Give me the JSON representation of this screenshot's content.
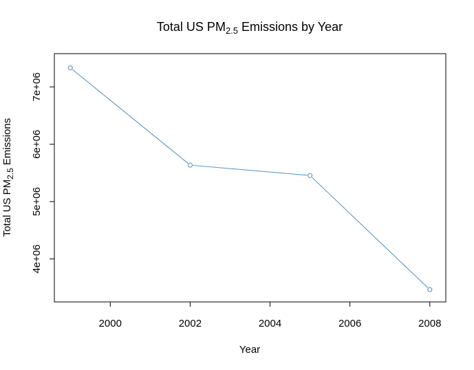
{
  "chart_data": {
    "type": "line",
    "title": {
      "prefix": "Total US  PM",
      "sub": "2.5",
      "suffix": " Emissions by Year"
    },
    "xlabel": "Year",
    "ylabel": {
      "prefix": "Total US PM",
      "sub": "2.5",
      "suffix": " Emissions"
    },
    "xlim": [
      1998.6,
      2008.4
    ],
    "ylim": [
      3250000,
      7580000
    ],
    "x_ticks": [
      2000,
      2002,
      2004,
      2006,
      2008
    ],
    "x_tick_labels": [
      "2000",
      "2002",
      "2004",
      "2006",
      "2008"
    ],
    "y_ticks": [
      4000000,
      5000000,
      6000000,
      7000000
    ],
    "y_tick_labels": [
      "4e+06",
      "5e+06",
      "6e+06",
      "7e+06"
    ],
    "grid": false,
    "legend": "none",
    "series": [
      {
        "color": "#4a8ec4",
        "x": [
          1999,
          2002,
          2005,
          2008
        ],
        "y": [
          7332967,
          5635780,
          5454703,
          3464206
        ]
      }
    ]
  }
}
